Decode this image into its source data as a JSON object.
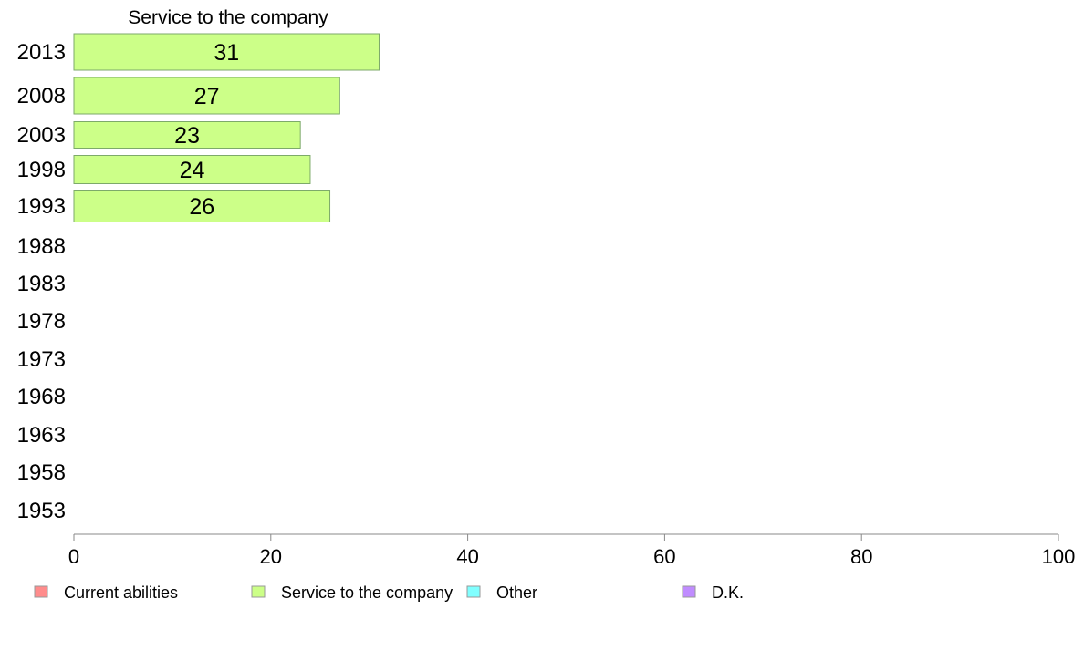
{
  "chart_data": {
    "type": "bar",
    "orientation": "horizontal",
    "title": "Service to the company",
    "categories": [
      "2013",
      "2008",
      "2003",
      "1998",
      "1993",
      "1988",
      "1983",
      "1978",
      "1973",
      "1968",
      "1963",
      "1958",
      "1953"
    ],
    "series": [
      {
        "name": "Service to the company",
        "color": "#ccff88",
        "values": [
          31,
          27,
          23,
          24,
          26,
          null,
          null,
          null,
          null,
          null,
          null,
          null,
          null
        ]
      }
    ],
    "xlim": [
      0,
      100
    ],
    "xticks": [
      "0",
      "20",
      "40",
      "60",
      "80",
      "100"
    ],
    "xlabel": "",
    "ylabel": "",
    "grid": false,
    "legend_position": "bottom",
    "legend": [
      {
        "label": "Current abilities",
        "color": "#ff8c8c"
      },
      {
        "label": "Service to the company",
        "color": "#ccff88"
      },
      {
        "label": "Other",
        "color": "#80ffff"
      },
      {
        "label": "D.K.",
        "color": "#c08cff"
      }
    ]
  },
  "colors": {
    "bar_border": "#7daa6a",
    "axis": "#888888"
  }
}
